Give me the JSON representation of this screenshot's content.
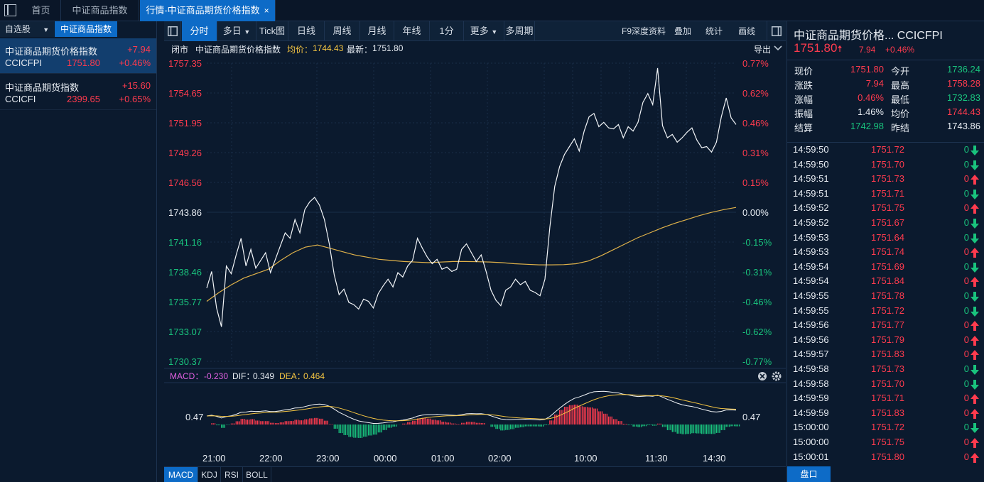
{
  "tabs": [
    {
      "label": "首页"
    },
    {
      "label": "中证商品指数"
    },
    {
      "label": "行情-中证商品期货价格指数",
      "close": "×"
    }
  ],
  "left": {
    "subtabs": [
      {
        "label": "自选股"
      },
      {
        "label": "中证商品指数"
      }
    ],
    "stocks": [
      {
        "name": "中证商品期货价格指数",
        "code": "CCICFPI",
        "change": "+7.94",
        "price": "1751.80",
        "pct": "+0.46%"
      },
      {
        "name": "中证商品期货指数",
        "code": "CCICFI",
        "change": "+15.60",
        "price": "2399.65",
        "pct": "+0.65%"
      }
    ]
  },
  "toolbar": {
    "items": [
      "分时",
      "多日",
      "Tick图",
      "日线",
      "周线",
      "月线",
      "年线",
      "1分",
      "更多",
      "多周期"
    ],
    "dropdown_arrow": "▼",
    "right": [
      "F9深度资料",
      "叠加",
      "统计",
      "画线"
    ]
  },
  "info": {
    "status": "闭市",
    "name": "中证商品期货价格指数",
    "avg_label": "均价：",
    "avg": "1744.43",
    "latest_label": "最新：",
    "latest": "1751.80",
    "export": "导出"
  },
  "chart_data": {
    "type": "line",
    "series": [
      {
        "name": "最新",
        "color": "#ffffff"
      },
      {
        "name": "均价",
        "color": "#e0b24a"
      }
    ],
    "prev_close": 1743.86,
    "ylim": [
      1730.37,
      1757.35
    ],
    "y_ticks": [
      "1757.35",
      "1754.65",
      "1751.95",
      "1749.26",
      "1746.56",
      "1743.86",
      "1741.16",
      "1738.46",
      "1735.77",
      "1733.07",
      "1730.37"
    ],
    "pct_ticks": [
      "0.77%",
      "0.62%",
      "0.46%",
      "0.31%",
      "0.15%",
      "0.00%",
      "-0.15%",
      "-0.31%",
      "-0.46%",
      "-0.62%",
      "-0.77%"
    ],
    "x_ticks": [
      "21:00",
      "22:00",
      "23:00",
      "00:00",
      "01:00",
      "02:00",
      "10:00",
      "11:30",
      "14:30"
    ],
    "price_series": [
      1737.0,
      1738.5,
      1735.2,
      1733.5,
      1739.0,
      1738.3,
      1740.0,
      1741.5,
      1739.0,
      1740.5,
      1738.8,
      1739.5,
      1740.2,
      1738.4,
      1739.6,
      1740.8,
      1742.0,
      1741.5,
      1743.2,
      1742.0,
      1744.1,
      1744.8,
      1745.2,
      1744.5,
      1743.2,
      1741.0,
      1738.2,
      1736.4,
      1736.9,
      1735.7,
      1735.5,
      1735.1,
      1736.0,
      1735.8,
      1735.2,
      1736.5,
      1737.2,
      1737.8,
      1737.1,
      1738.4,
      1738.0,
      1739.0,
      1739.5,
      1741.5,
      1740.6,
      1739.8,
      1739.2,
      1739.6,
      1738.7,
      1738.9,
      1738.5,
      1738.7,
      1740.5,
      1741.0,
      1740.2,
      1739.4,
      1740.0,
      1738.5,
      1736.8,
      1735.9,
      1735.4,
      1736.8,
      1737.1,
      1737.8,
      1737.3,
      1737.6,
      1736.8,
      1736.6,
      1736.3,
      1737.8,
      1742.5,
      1746.2,
      1748.0,
      1749.1,
      1749.8,
      1750.5,
      1749.4,
      1751.2,
      1752.5,
      1752.8,
      1751.6,
      1752.0,
      1751.5,
      1751.4,
      1751.8,
      1750.6,
      1751.6,
      1751.2,
      1752.0,
      1753.8,
      1754.6,
      1753.6,
      1756.9,
      1751.7,
      1750.6,
      1750.9,
      1750.2,
      1750.6,
      1751.1,
      1751.5,
      1750.4,
      1749.7,
      1749.8,
      1749.3,
      1750.2,
      1752.5,
      1754.2,
      1752.4,
      1751.8
    ],
    "avg_series": [
      1735.8,
      1736.6,
      1737.3,
      1737.9,
      1738.3,
      1738.7,
      1739.5,
      1740.2,
      1740.7,
      1740.9,
      1740.6,
      1740.3,
      1740.0,
      1739.8,
      1739.6,
      1739.5,
      1739.4,
      1739.35,
      1739.3,
      1739.35,
      1739.4,
      1739.4,
      1739.38,
      1739.36,
      1739.3,
      1739.2,
      1739.15,
      1739.1,
      1739.1,
      1739.12,
      1739.2,
      1739.45,
      1739.9,
      1740.45,
      1741.0,
      1741.55,
      1742.0,
      1742.45,
      1742.85,
      1743.2,
      1743.55,
      1743.85,
      1744.1,
      1744.3
    ],
    "macd": {
      "label": "MACD：",
      "value": "-0.230",
      "dif_label": "DIF：",
      "dif": "0.349",
      "dea_label": "DEA：",
      "dea": "0.464",
      "axis": "0.47"
    }
  },
  "right": {
    "title": "中证商品期货价格...",
    "code": "CCICFPI",
    "price": "1751.80",
    "up_arrow": "🠅",
    "change": "7.94",
    "pct": "+0.46%",
    "quotes": [
      {
        "l": "现价",
        "v": "1751.80",
        "c": "up",
        "l2": "今开",
        "v2": "1736.24",
        "c2": "down"
      },
      {
        "l": "涨跌",
        "v": "7.94",
        "c": "up",
        "l2": "最高",
        "v2": "1758.28",
        "c2": "up"
      },
      {
        "l": "涨幅",
        "v": "0.46%",
        "c": "up",
        "l2": "最低",
        "v2": "1732.83",
        "c2": "down"
      },
      {
        "l": "振幅",
        "v": "1.46%",
        "c": "white",
        "l2": "均价",
        "v2": "1744.43",
        "c2": "up"
      },
      {
        "l": "结算",
        "v": "1742.98",
        "c": "down",
        "l2": "昨结",
        "v2": "1743.86",
        "c2": "white"
      }
    ],
    "ticks": [
      {
        "t": "14:59:50",
        "p": "1751.72",
        "v": "0",
        "d": "down"
      },
      {
        "t": "14:59:50",
        "p": "1751.70",
        "v": "0",
        "d": "down"
      },
      {
        "t": "14:59:51",
        "p": "1751.73",
        "v": "0",
        "d": "up"
      },
      {
        "t": "14:59:51",
        "p": "1751.71",
        "v": "0",
        "d": "down"
      },
      {
        "t": "14:59:52",
        "p": "1751.75",
        "v": "0",
        "d": "up"
      },
      {
        "t": "14:59:52",
        "p": "1751.67",
        "v": "0",
        "d": "down"
      },
      {
        "t": "14:59:53",
        "p": "1751.64",
        "v": "0",
        "d": "down"
      },
      {
        "t": "14:59:53",
        "p": "1751.74",
        "v": "0",
        "d": "up"
      },
      {
        "t": "14:59:54",
        "p": "1751.69",
        "v": "0",
        "d": "down"
      },
      {
        "t": "14:59:54",
        "p": "1751.84",
        "v": "0",
        "d": "up"
      },
      {
        "t": "14:59:55",
        "p": "1751.78",
        "v": "0",
        "d": "down"
      },
      {
        "t": "14:59:55",
        "p": "1751.72",
        "v": "0",
        "d": "down"
      },
      {
        "t": "14:59:56",
        "p": "1751.77",
        "v": "0",
        "d": "up"
      },
      {
        "t": "14:59:56",
        "p": "1751.79",
        "v": "0",
        "d": "up"
      },
      {
        "t": "14:59:57",
        "p": "1751.83",
        "v": "0",
        "d": "up"
      },
      {
        "t": "14:59:58",
        "p": "1751.73",
        "v": "0",
        "d": "down"
      },
      {
        "t": "14:59:58",
        "p": "1751.70",
        "v": "0",
        "d": "down"
      },
      {
        "t": "14:59:59",
        "p": "1751.71",
        "v": "0",
        "d": "up"
      },
      {
        "t": "14:59:59",
        "p": "1751.83",
        "v": "0",
        "d": "up"
      },
      {
        "t": "15:00:00",
        "p": "1751.72",
        "v": "0",
        "d": "down"
      },
      {
        "t": "15:00:00",
        "p": "1751.75",
        "v": "0",
        "d": "up"
      },
      {
        "t": "15:00:01",
        "p": "1751.80",
        "v": "0",
        "d": "up"
      }
    ],
    "bottom_tab": "盘口"
  },
  "bottom_tabs": [
    "MACD",
    "KDJ",
    "RSI",
    "BOLL"
  ],
  "colors": {
    "up": "#ff3b4e",
    "down": "#19c37d",
    "accent": "#0d6bc7",
    "avg_line": "#e0b24a",
    "bg": "#0b1a2e"
  }
}
